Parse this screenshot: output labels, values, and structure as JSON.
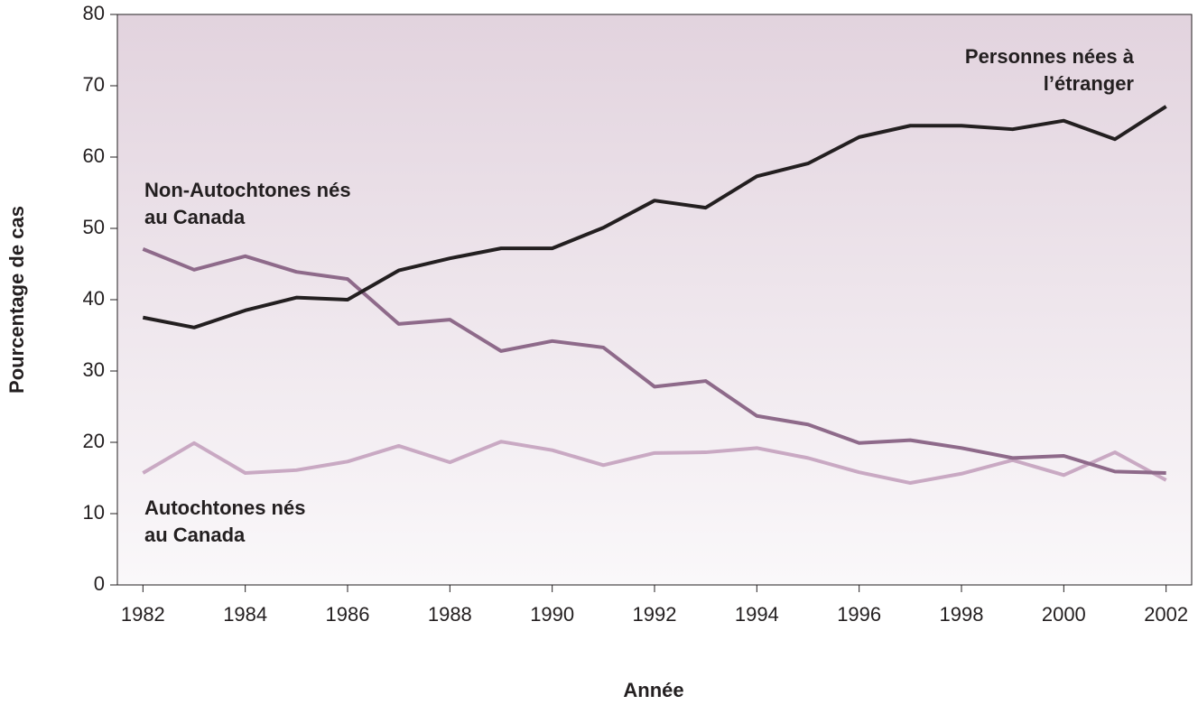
{
  "chart_data": {
    "type": "line",
    "xlabel": "Année",
    "ylabel": "Pourcentage de cas",
    "x": [
      1982,
      1983,
      1984,
      1985,
      1986,
      1987,
      1988,
      1989,
      1990,
      1991,
      1992,
      1993,
      1994,
      1995,
      1996,
      1997,
      1998,
      1999,
      2000,
      2001,
      2002
    ],
    "xlim": [
      1981.5,
      2002.5
    ],
    "xticks": [
      1982,
      1984,
      1986,
      1988,
      1990,
      1992,
      1994,
      1996,
      1998,
      2000,
      2002
    ],
    "ylim": [
      0,
      80
    ],
    "yticks": [
      0,
      10,
      20,
      30,
      40,
      50,
      60,
      70,
      80
    ],
    "grid": false,
    "series": [
      {
        "name": "Personnes nées à l’étranger",
        "color": "#231f20",
        "values": [
          37.5,
          36.1,
          38.5,
          40.3,
          40.0,
          44.1,
          45.8,
          47.2,
          47.2,
          50.1,
          53.9,
          52.9,
          57.3,
          59.1,
          62.8,
          64.4,
          64.4,
          63.9,
          65.1,
          62.5,
          67.1
        ]
      },
      {
        "name": "Non-Autochtones nés au Canada",
        "color": "#8e6a8a",
        "values": [
          47.1,
          44.2,
          46.1,
          43.9,
          42.9,
          36.6,
          37.2,
          32.8,
          34.2,
          33.3,
          27.8,
          28.6,
          23.7,
          22.5,
          19.9,
          20.3,
          19.2,
          17.8,
          18.1,
          15.9,
          15.7
        ]
      },
      {
        "name": "Autochtones nés au Canada",
        "color": "#c9a9c3",
        "values": [
          15.7,
          19.9,
          15.7,
          16.1,
          17.3,
          19.5,
          17.2,
          20.1,
          18.9,
          16.8,
          18.5,
          18.6,
          19.2,
          17.8,
          15.8,
          14.3,
          15.6,
          17.5,
          15.4,
          18.6,
          14.7
        ]
      }
    ]
  }
}
